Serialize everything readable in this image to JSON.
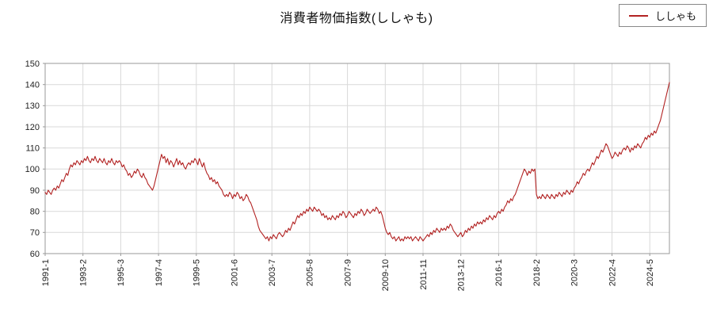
{
  "chart_data": {
    "type": "line",
    "title": "消費者物価指数(ししゃも)",
    "legend": [
      "ししゃも"
    ],
    "line_color": "#b22222",
    "grid_color": "#d9d9d9",
    "border_color": "#999999",
    "ylim": [
      60,
      150
    ],
    "yticks": [
      60,
      70,
      80,
      90,
      100,
      110,
      120,
      130,
      140,
      150
    ],
    "x_start": "1991-1",
    "x_tick_interval_months": 25,
    "x_tick_labels": [
      "1991-1",
      "1993-2",
      "1995-3",
      "1997-4",
      "1999-5",
      "2001-6",
      "2003-7",
      "2005-8",
      "2007-9",
      "2009-10",
      "2011-11",
      "2013-12",
      "2016-1",
      "2018-2",
      "2020-3",
      "2022-4",
      "2024-5"
    ],
    "values": [
      89,
      88,
      90,
      89,
      88,
      90,
      91,
      90,
      92,
      91,
      93,
      95,
      94,
      96,
      98,
      97,
      100,
      102,
      101,
      103,
      102,
      104,
      103,
      102,
      104,
      103,
      105,
      104,
      106,
      104,
      103,
      105,
      104,
      106,
      104,
      103,
      105,
      104,
      103,
      105,
      103,
      102,
      104,
      103,
      105,
      103,
      102,
      104,
      103,
      104,
      103,
      101,
      102,
      100,
      99,
      97,
      98,
      96,
      97,
      99,
      98,
      100,
      99,
      97,
      96,
      98,
      96,
      95,
      93,
      92,
      91,
      90,
      92,
      95,
      98,
      101,
      104,
      107,
      105,
      106,
      103,
      105,
      102,
      104,
      103,
      101,
      103,
      105,
      102,
      104,
      102,
      103,
      101,
      100,
      102,
      103,
      102,
      104,
      103,
      105,
      104,
      102,
      105,
      103,
      101,
      103,
      100,
      98,
      97,
      95,
      96,
      94,
      95,
      93,
      94,
      92,
      91,
      90,
      88,
      87,
      88,
      87,
      89,
      88,
      86,
      88,
      87,
      89,
      88,
      86,
      87,
      85,
      86,
      88,
      87,
      85,
      84,
      82,
      80,
      78,
      76,
      73,
      71,
      70,
      69,
      68,
      67,
      68,
      66,
      68,
      67,
      69,
      68,
      67,
      69,
      70,
      69,
      68,
      69,
      71,
      70,
      72,
      71,
      73,
      75,
      74,
      76,
      78,
      77,
      79,
      78,
      80,
      79,
      81,
      80,
      82,
      81,
      80,
      82,
      81,
      80,
      81,
      80,
      78,
      79,
      77,
      78,
      76,
      77,
      76,
      78,
      77,
      76,
      78,
      77,
      79,
      78,
      80,
      79,
      77,
      78,
      80,
      79,
      78,
      77,
      79,
      78,
      80,
      79,
      81,
      80,
      78,
      79,
      81,
      80,
      79,
      80,
      81,
      80,
      82,
      81,
      79,
      80,
      78,
      75,
      72,
      70,
      69,
      70,
      68,
      67,
      68,
      66,
      67,
      68,
      66,
      67,
      66,
      68,
      67,
      68,
      67,
      68,
      66,
      67,
      68,
      67,
      66,
      68,
      67,
      66,
      67,
      68,
      69,
      68,
      70,
      69,
      71,
      70,
      72,
      71,
      70,
      72,
      71,
      72,
      71,
      73,
      72,
      74,
      73,
      71,
      70,
      69,
      68,
      69,
      70,
      68,
      69,
      71,
      70,
      72,
      71,
      73,
      72,
      74,
      73,
      75,
      74,
      75,
      74,
      76,
      75,
      77,
      76,
      78,
      77,
      76,
      78,
      77,
      79,
      80,
      79,
      81,
      80,
      82,
      83,
      85,
      84,
      86,
      85,
      87,
      88,
      90,
      92,
      94,
      96,
      98,
      100,
      99,
      97,
      99,
      98,
      100,
      99,
      100,
      88,
      86,
      87,
      86,
      88,
      87,
      86,
      88,
      87,
      86,
      88,
      87,
      86,
      88,
      87,
      89,
      88,
      87,
      89,
      88,
      90,
      89,
      88,
      90,
      89,
      91,
      92,
      94,
      93,
      95,
      96,
      98,
      97,
      99,
      100,
      99,
      101,
      103,
      102,
      104,
      106,
      105,
      107,
      109,
      108,
      110,
      112,
      111,
      109,
      107,
      105,
      106,
      108,
      107,
      106,
      108,
      107,
      109,
      110,
      109,
      111,
      110,
      108,
      110,
      109,
      111,
      110,
      112,
      111,
      110,
      112,
      113,
      115,
      114,
      116,
      115,
      117,
      116,
      118,
      117,
      119,
      121,
      123,
      126,
      129,
      132,
      135,
      138,
      141
    ]
  }
}
